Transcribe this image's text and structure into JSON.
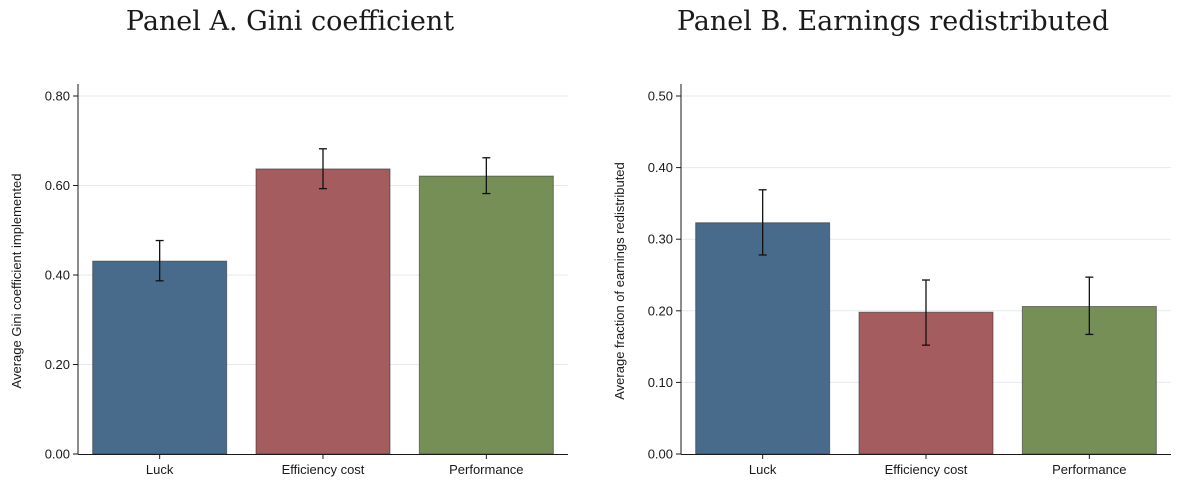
{
  "chart_data": [
    {
      "type": "bar",
      "title": "Panel A. Gini coefficient",
      "xlabel": "",
      "ylabel": "Average Gini coefficient implemented",
      "categories": [
        "Luck",
        "Efficiency cost",
        "Performance"
      ],
      "values": [
        0.431,
        0.637,
        0.621
      ],
      "error_low": [
        0.387,
        0.593,
        0.582
      ],
      "error_high": [
        0.477,
        0.682,
        0.662
      ],
      "colors": [
        "#486b8c",
        "#a55c5f",
        "#768f56"
      ],
      "ylim": [
        0,
        0.8
      ],
      "yticks": [
        "0.00",
        "0.20",
        "0.40",
        "0.60",
        "0.80"
      ],
      "ytick_values": [
        0,
        0.2,
        0.4,
        0.6,
        0.8
      ],
      "grid": true
    },
    {
      "type": "bar",
      "title": "Panel B. Earnings redistributed",
      "xlabel": "",
      "ylabel": "Average fraction of earnings redistributed",
      "categories": [
        "Luck",
        "Efficiency cost",
        "Performance"
      ],
      "values": [
        0.323,
        0.198,
        0.206
      ],
      "error_low": [
        0.278,
        0.152,
        0.167
      ],
      "error_high": [
        0.369,
        0.243,
        0.247
      ],
      "colors": [
        "#486b8c",
        "#a55c5f",
        "#768f56"
      ],
      "ylim": [
        0,
        0.5
      ],
      "yticks": [
        "0.00",
        "0.10",
        "0.20",
        "0.30",
        "0.40",
        "0.50"
      ],
      "ytick_values": [
        0,
        0.1,
        0.2,
        0.3,
        0.4,
        0.5
      ],
      "grid": true
    }
  ]
}
